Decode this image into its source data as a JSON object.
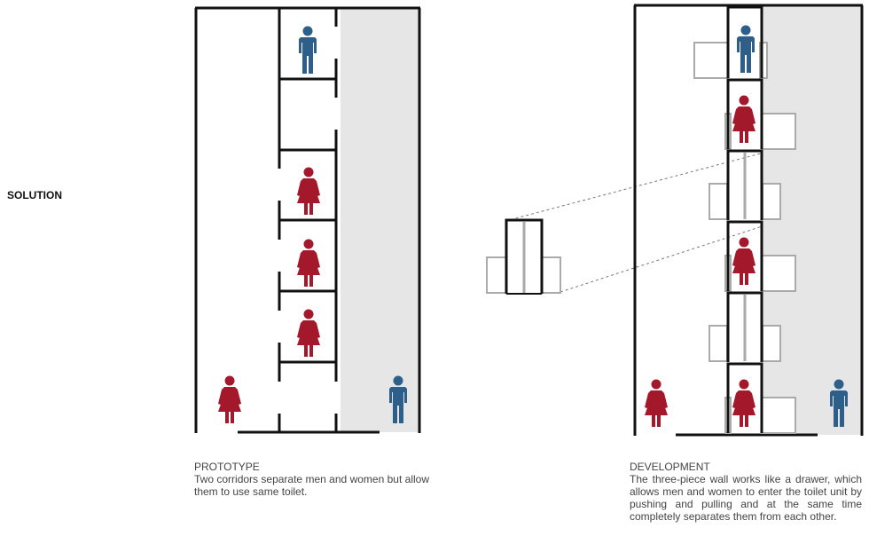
{
  "section_label": "SOLUTION",
  "prototype": {
    "title": "PROTOTYPE",
    "description": "Two corridors separate men and women but allow them to use same toilet."
  },
  "development": {
    "title": "DEVELOPMENT",
    "description": "The three-piece wall works like a drawer, which allows men and women to enter the toilet unit by pushing and pulling and at the same time completely separates them from each other."
  },
  "colors": {
    "male": "#2e5f8a",
    "female": "#a3182a",
    "wall": "#111111",
    "corridor_shade": "#e6e6e6",
    "drawer_gray": "#aaaaaa"
  },
  "icons": {
    "male": "male-figure-icon",
    "female": "female-figure-icon"
  }
}
